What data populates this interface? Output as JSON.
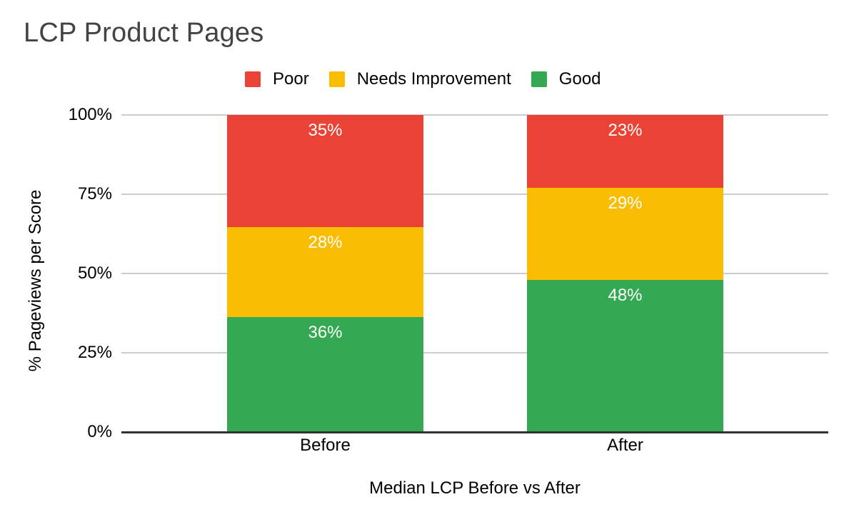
{
  "chart_data": {
    "type": "bar",
    "subtype": "stacked-100-percent",
    "title": "LCP Product Pages",
    "xlabel": "Median LCP Before vs After",
    "ylabel": "% Pageviews per Score",
    "categories": [
      "Before",
      "After"
    ],
    "series": [
      {
        "name": "Poor",
        "color": "#EA4335",
        "values": [
          35,
          23
        ],
        "labels": [
          "35%",
          "23%"
        ]
      },
      {
        "name": "Needs Improvement",
        "color": "#FBBC04",
        "values": [
          28,
          29
        ],
        "labels": [
          "28%",
          "29%"
        ]
      },
      {
        "name": "Good",
        "color": "#34A853",
        "values": [
          36,
          48
        ],
        "labels": [
          "36%",
          "48%"
        ]
      }
    ],
    "stack_order_top_to_bottom": [
      "Poor",
      "Needs Improvement",
      "Good"
    ],
    "yticks": [
      "0%",
      "25%",
      "50%",
      "75%",
      "100%"
    ],
    "ylim": [
      0,
      100
    ],
    "grid": true,
    "legend_position": "top"
  },
  "style": {
    "background": "#ffffff",
    "title_color": "#434343",
    "text_color": "#000000",
    "data_label_color": "#ffffff",
    "grid_color": "#cccccc",
    "axis_line_color": "#333333"
  }
}
